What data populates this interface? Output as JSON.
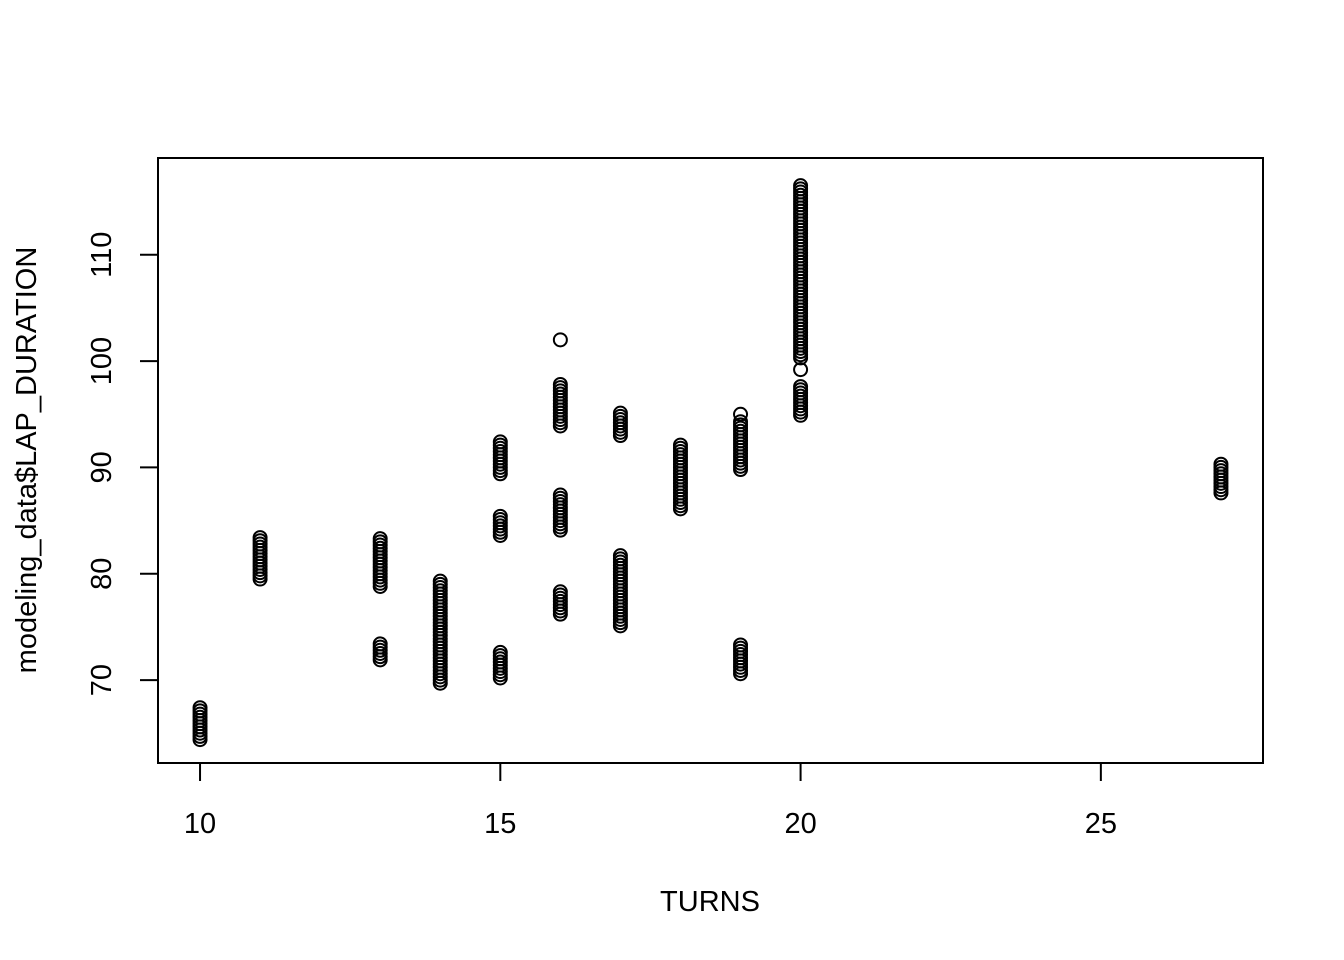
{
  "chart_data": {
    "type": "scatter",
    "title": "",
    "xlabel": "TURNS",
    "ylabel": "modeling_data$LAP_DURATION",
    "xlim": [
      9.3,
      27.7
    ],
    "ylim": [
      62.2,
      119.1
    ],
    "xticks": [
      10,
      15,
      20,
      25
    ],
    "yticks": [
      70,
      80,
      90,
      100,
      110
    ],
    "grid": false,
    "legend": "none",
    "point_color": "#000000",
    "groups": [
      {
        "x": 10,
        "y_min": 64.4,
        "y_max": 67.6,
        "outliers": []
      },
      {
        "x": 11,
        "y_min": 79.5,
        "y_max": 83.4,
        "outliers": []
      },
      {
        "x": 13,
        "y_min": 78.8,
        "y_max": 83.4,
        "outliers": []
      },
      {
        "x": 13,
        "y_min": 71.9,
        "y_max": 73.6,
        "outliers": []
      },
      {
        "x": 14,
        "y_min": 69.7,
        "y_max": 79.3,
        "outliers": []
      },
      {
        "x": 15,
        "y_min": 89.4,
        "y_max": 92.6,
        "outliers": []
      },
      {
        "x": 15,
        "y_min": 83.6,
        "y_max": 85.6,
        "outliers": []
      },
      {
        "x": 15,
        "y_min": 70.2,
        "y_max": 72.8,
        "outliers": []
      },
      {
        "x": 16,
        "y_min": 93.9,
        "y_max": 98.0,
        "outliers": [
          102.0
        ]
      },
      {
        "x": 16,
        "y_min": 84.1,
        "y_max": 87.6,
        "outliers": []
      },
      {
        "x": 16,
        "y_min": 76.2,
        "y_max": 78.5,
        "outliers": []
      },
      {
        "x": 17,
        "y_min": 93.0,
        "y_max": 95.3,
        "outliers": []
      },
      {
        "x": 17,
        "y_min": 75.1,
        "y_max": 81.9,
        "outliers": []
      },
      {
        "x": 18,
        "y_min": 86.1,
        "y_max": 92.1,
        "outliers": []
      },
      {
        "x": 19,
        "y_min": 89.8,
        "y_max": 94.3,
        "outliers": [
          95.0
        ]
      },
      {
        "x": 19,
        "y_min": 70.6,
        "y_max": 73.3,
        "outliers": []
      },
      {
        "x": 20,
        "y_min": 94.9,
        "y_max": 97.8,
        "outliers": [
          99.2
        ]
      },
      {
        "x": 20,
        "y_min": 100.3,
        "y_max": 116.7,
        "outliers": []
      },
      {
        "x": 27,
        "y_min": 87.6,
        "y_max": 90.4,
        "outliers": []
      }
    ]
  }
}
